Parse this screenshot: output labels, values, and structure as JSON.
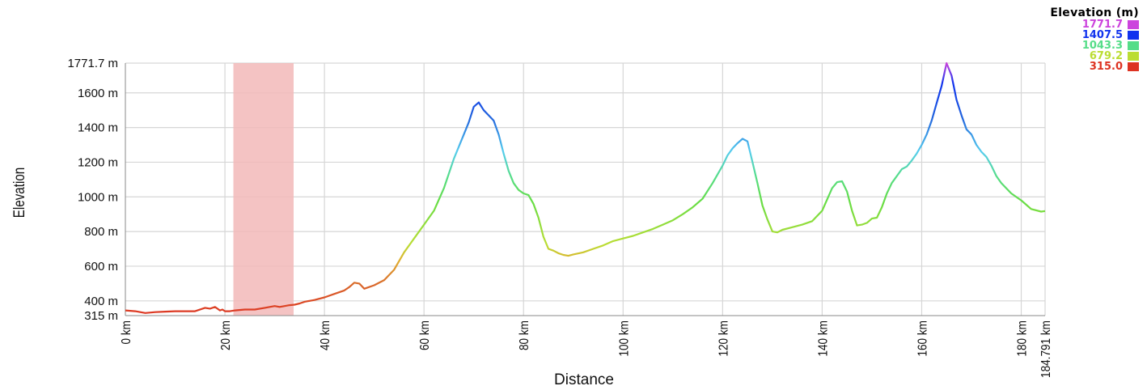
{
  "chart_data": {
    "type": "area",
    "title": "",
    "xlabel": "Distance",
    "ylabel": "Elevation",
    "xlim": [
      0,
      184.791
    ],
    "ylim": [
      315,
      1771.7
    ],
    "x_ticks": [
      "0 km",
      "20 km",
      "40 km",
      "60 km",
      "80 km",
      "100 km",
      "120 km",
      "140 km",
      "160 km",
      "180 km",
      "184.791 km"
    ],
    "x_tick_values": [
      0,
      20,
      40,
      60,
      80,
      100,
      120,
      140,
      160,
      180,
      184.791
    ],
    "y_ticks": [
      "315 m",
      "400 m",
      "600 m",
      "800 m",
      "1000 m",
      "1200 m",
      "1400 m",
      "1600 m",
      "1771.7 m"
    ],
    "y_tick_values": [
      315,
      400,
      600,
      800,
      1000,
      1200,
      1400,
      1600,
      1771.7
    ],
    "grid": true,
    "highlight_range": [
      21.7,
      33.8
    ],
    "legend": {
      "title": "Elevation (m)",
      "placement": "top-right",
      "entries": [
        {
          "label": "1771.7",
          "color": "#cc44dd"
        },
        {
          "label": "1407.5",
          "color": "#1133ee"
        },
        {
          "label": "1043.3",
          "color": "#55dd88"
        },
        {
          "label": "679.2",
          "color": "#bbdd33"
        },
        {
          "label": "315.0",
          "color": "#dd3322"
        }
      ]
    },
    "series": [
      {
        "x": [
          0,
          2,
          4,
          6,
          8,
          10,
          12,
          14,
          16,
          17,
          18,
          19,
          19.5,
          20,
          21,
          22,
          24,
          26,
          28,
          30,
          31,
          32,
          33,
          34,
          35,
          36,
          38,
          40,
          42,
          44,
          45,
          46,
          47,
          48,
          50,
          52,
          54,
          56,
          58,
          60,
          62,
          64,
          66,
          68,
          69,
          70,
          71,
          72,
          73,
          74,
          75,
          76,
          77,
          78,
          79,
          80,
          81,
          82,
          83,
          84,
          85,
          86,
          87,
          88,
          89,
          90,
          92,
          94,
          96,
          98,
          100,
          102,
          104,
          106,
          108,
          110,
          112,
          114,
          116,
          118,
          120,
          121,
          122,
          123,
          124,
          125,
          126,
          127,
          128,
          129,
          130,
          131,
          132,
          134,
          136,
          138,
          140,
          142,
          143,
          144,
          145,
          146,
          147,
          148,
          149,
          150,
          151,
          152,
          153,
          154,
          156,
          157,
          158,
          159,
          160,
          161,
          162,
          163,
          164,
          165,
          166,
          167,
          168,
          169,
          170,
          171,
          172,
          173,
          174,
          175,
          176,
          178,
          180,
          182,
          184,
          184.791
        ],
        "y": [
          345,
          340,
          330,
          335,
          338,
          340,
          340,
          340,
          360,
          355,
          365,
          345,
          350,
          340,
          340,
          345,
          350,
          350,
          360,
          370,
          365,
          370,
          375,
          378,
          385,
          395,
          405,
          420,
          440,
          460,
          480,
          505,
          500,
          470,
          490,
          520,
          580,
          680,
          760,
          840,
          920,
          1050,
          1220,
          1360,
          1430,
          1520,
          1545,
          1500,
          1470,
          1440,
          1360,
          1250,
          1150,
          1080,
          1040,
          1020,
          1010,
          960,
          880,
          770,
          700,
          690,
          675,
          665,
          660,
          668,
          680,
          700,
          720,
          745,
          760,
          775,
          795,
          815,
          840,
          865,
          900,
          940,
          990,
          1080,
          1180,
          1240,
          1280,
          1310,
          1335,
          1320,
          1200,
          1080,
          950,
          870,
          800,
          795,
          810,
          825,
          840,
          860,
          920,
          1050,
          1085,
          1090,
          1030,
          920,
          835,
          840,
          850,
          875,
          880,
          940,
          1020,
          1080,
          1160,
          1175,
          1210,
          1250,
          1300,
          1360,
          1440,
          1540,
          1640,
          1771.7,
          1700,
          1560,
          1470,
          1390,
          1360,
          1300,
          1260,
          1230,
          1180,
          1120,
          1080,
          1020,
          980,
          930,
          915,
          918
        ]
      }
    ]
  }
}
